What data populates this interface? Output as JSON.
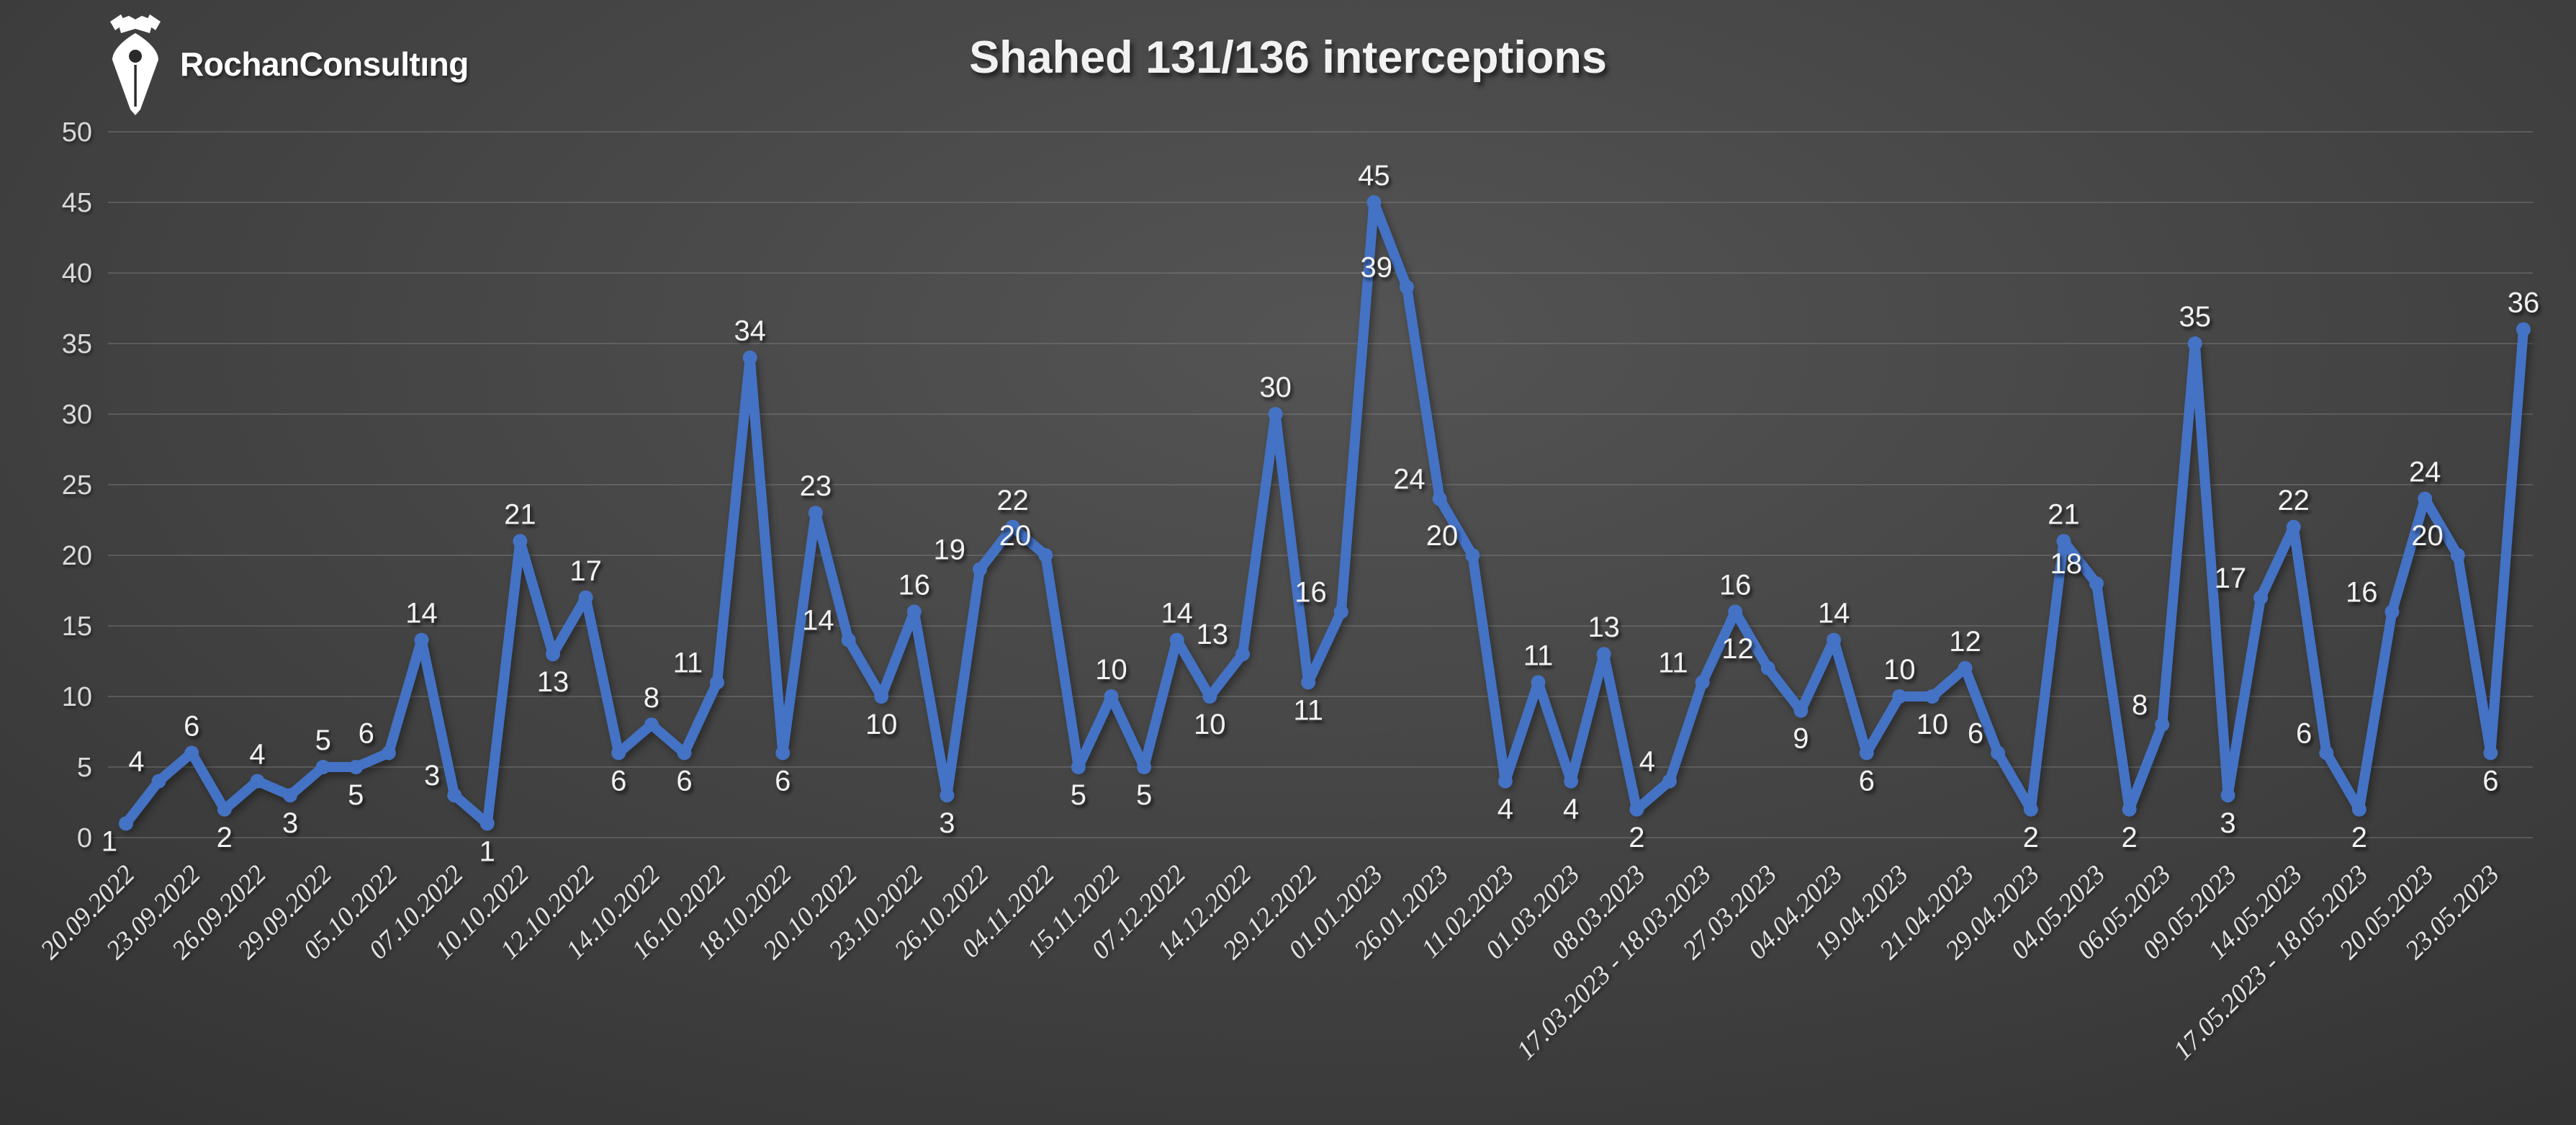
{
  "header": {
    "logo_text": "RochanConsultıng",
    "title": "Shahed 131/136 interceptions"
  },
  "chart_data": {
    "type": "line",
    "title": "Shahed 131/136 interceptions",
    "xlabel": "",
    "ylabel": "",
    "ylim": [
      0,
      50
    ],
    "y_ticks": [
      0,
      5,
      10,
      15,
      20,
      25,
      30,
      35,
      40,
      45,
      50
    ],
    "grid": true,
    "legend": false,
    "data_labels": true,
    "x_label_every_nth_point": 2,
    "x_tick_labels": [
      "20.09.2022",
      "23.09.2022",
      "26.09.2022",
      "29.09.2022",
      "05.10.2022",
      "07.10.2022",
      "10.10.2022",
      "12.10.2022",
      "14.10.2022",
      "16.10.2022",
      "18.10.2022",
      "20.10.2022",
      "23.10.2022",
      "26.10.2022",
      "04.11.2022",
      "15.11.2022",
      "07.12.2022",
      "14.12.2022",
      "29.12.2022",
      "01.01.2023",
      "26.01.2023",
      "11.02.2023",
      "01.03.2023",
      "08.03.2023",
      "17.03.2023 - 18.03.2023",
      "27.03.2023",
      "04.04.2023",
      "19.04.2023",
      "21.04.2023",
      "29.04.2023",
      "04.05.2023",
      "06.05.2023",
      "09.05.2023",
      "14.05.2023",
      "17.05.2023 - 18.05.2023",
      "20.05.2023",
      "23.05.2023"
    ],
    "series": [
      {
        "name": "Shahed 131/136 interceptions",
        "values": [
          1,
          4,
          6,
          2,
          4,
          3,
          5,
          5,
          6,
          14,
          3,
          1,
          21,
          13,
          17,
          6,
          8,
          6,
          11,
          34,
          6,
          23,
          14,
          10,
          16,
          3,
          19,
          22,
          20,
          5,
          10,
          5,
          14,
          10,
          13,
          30,
          11,
          16,
          45,
          39,
          24,
          20,
          4,
          11,
          4,
          13,
          2,
          4,
          11,
          16,
          12,
          9,
          14,
          6,
          10,
          10,
          12,
          6,
          2,
          21,
          18,
          2,
          8,
          35,
          3,
          17,
          22,
          6,
          2,
          16,
          24,
          20,
          6,
          36
        ]
      }
    ],
    "colors": {
      "line": "#4472C4",
      "data_label": "#f2f2f2",
      "y_tick_label": "#d9d9d9",
      "x_tick_label": "#e3e3e3",
      "gridline": "#8a8a8a",
      "title": "#f2f2f2",
      "logo": "#ffffff",
      "background_center": "#545454",
      "background_mid": "#303030",
      "background_edge": "#1b1b1b"
    }
  }
}
